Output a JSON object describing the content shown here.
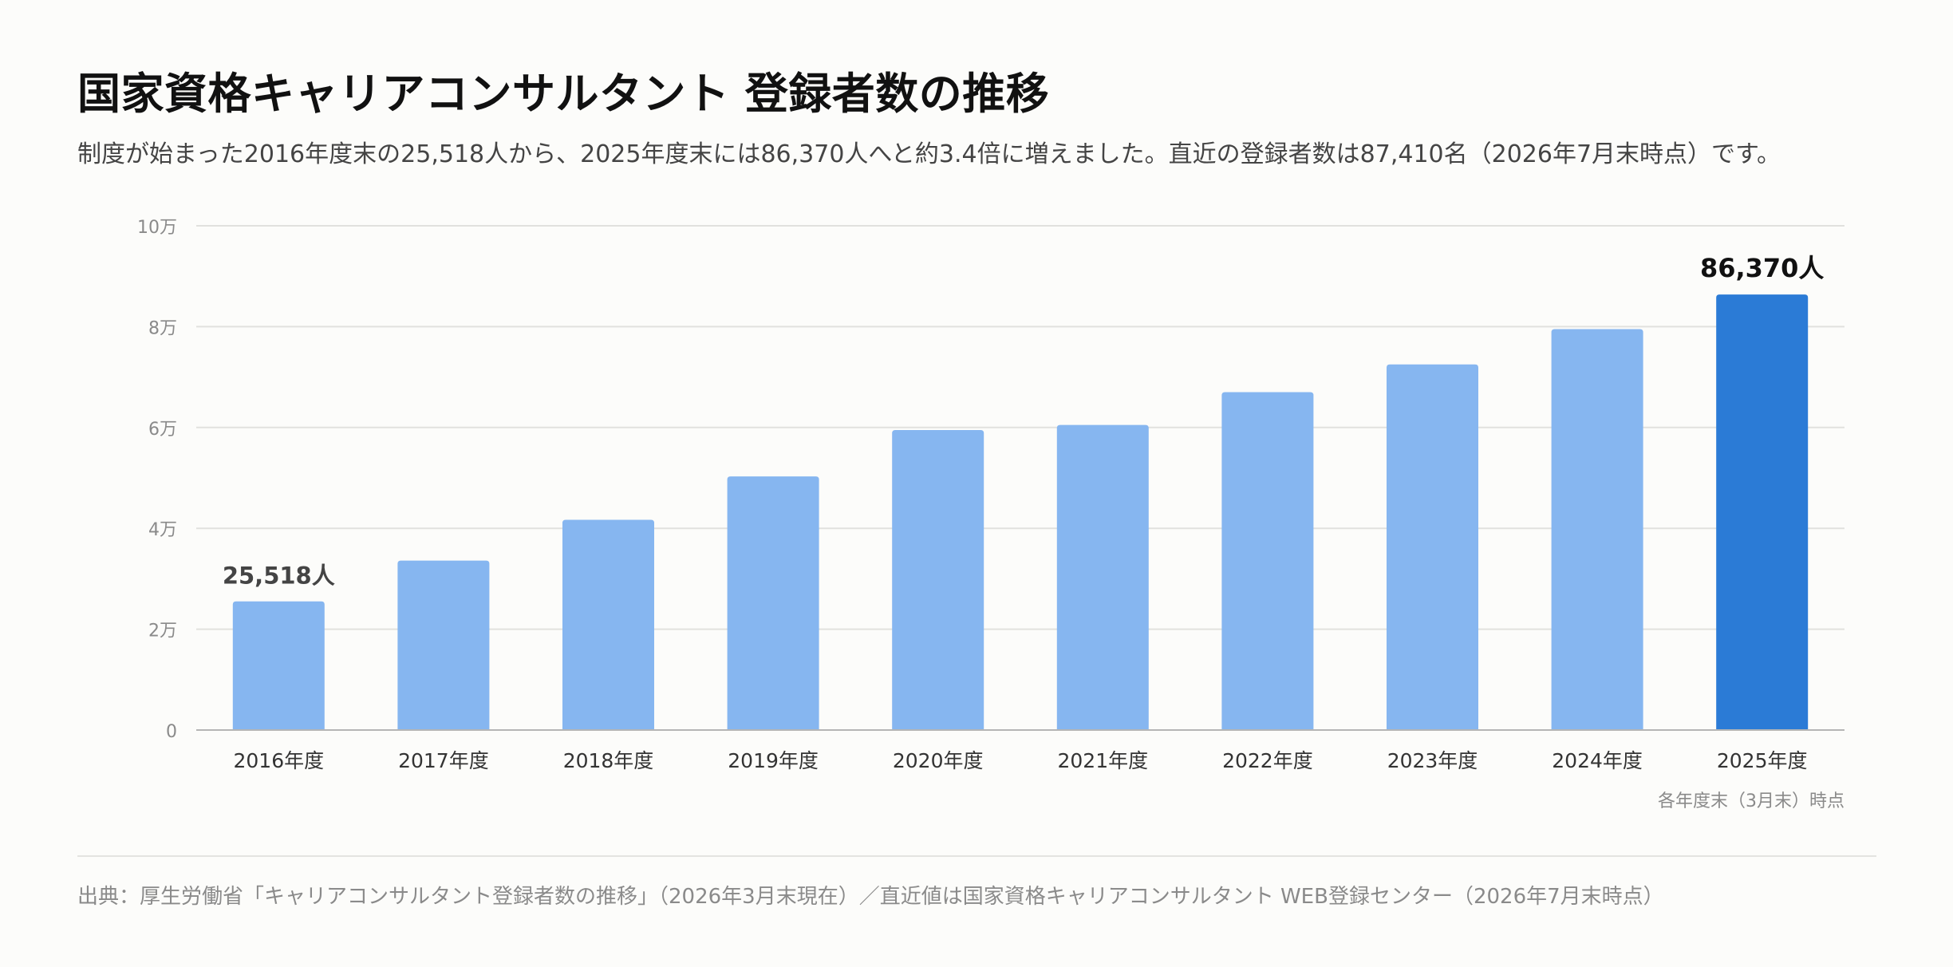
{
  "title": "国家資格キャリアコンサルタント 登録者数の推移",
  "subtitle": "制度が始まった2016年度末の25,518人から、2025年度末には86,370人へと約3.4倍に増えました。直近の登録者数は87,410名（2026年7月末時点）です。",
  "source": "出典：厚生労働省「キャリアコンサルタント登録者数の推移」（2026年3月末現在）／直近値は国家資格キャリアコンサルタント WEB登録センター（2026年7月末時点）",
  "colors": {
    "bar": "#86b6f0",
    "bar_highlight": "#2b7bd6",
    "grid": "#e1e1de",
    "axis": "#b5b5b5",
    "tick_text": "#8a8a8a",
    "category_text": "#333333",
    "label_first": "#444444",
    "label_last": "#111111"
  },
  "chart_data": {
    "type": "bar",
    "categories": [
      "2016年度",
      "2017年度",
      "2018年度",
      "2019年度",
      "2020年度",
      "2021年度",
      "2022年度",
      "2023年度",
      "2024年度",
      "2025年度"
    ],
    "values": [
      25518,
      33600,
      41700,
      50300,
      59500,
      60500,
      67000,
      72500,
      79500,
      86370
    ],
    "ylim": [
      0,
      100000
    ],
    "yticks": [
      0,
      20000,
      40000,
      60000,
      80000,
      100000
    ],
    "ytick_labels": [
      "0",
      "2万",
      "4万",
      "6万",
      "8万",
      "10万"
    ],
    "data_labels": [
      {
        "index": 0,
        "text": "25,518人"
      },
      {
        "index": 9,
        "text": "86,370人"
      }
    ],
    "highlight_index": 9,
    "x_note": "各年度末（3月末）時点",
    "grid": true,
    "legend": "none"
  }
}
